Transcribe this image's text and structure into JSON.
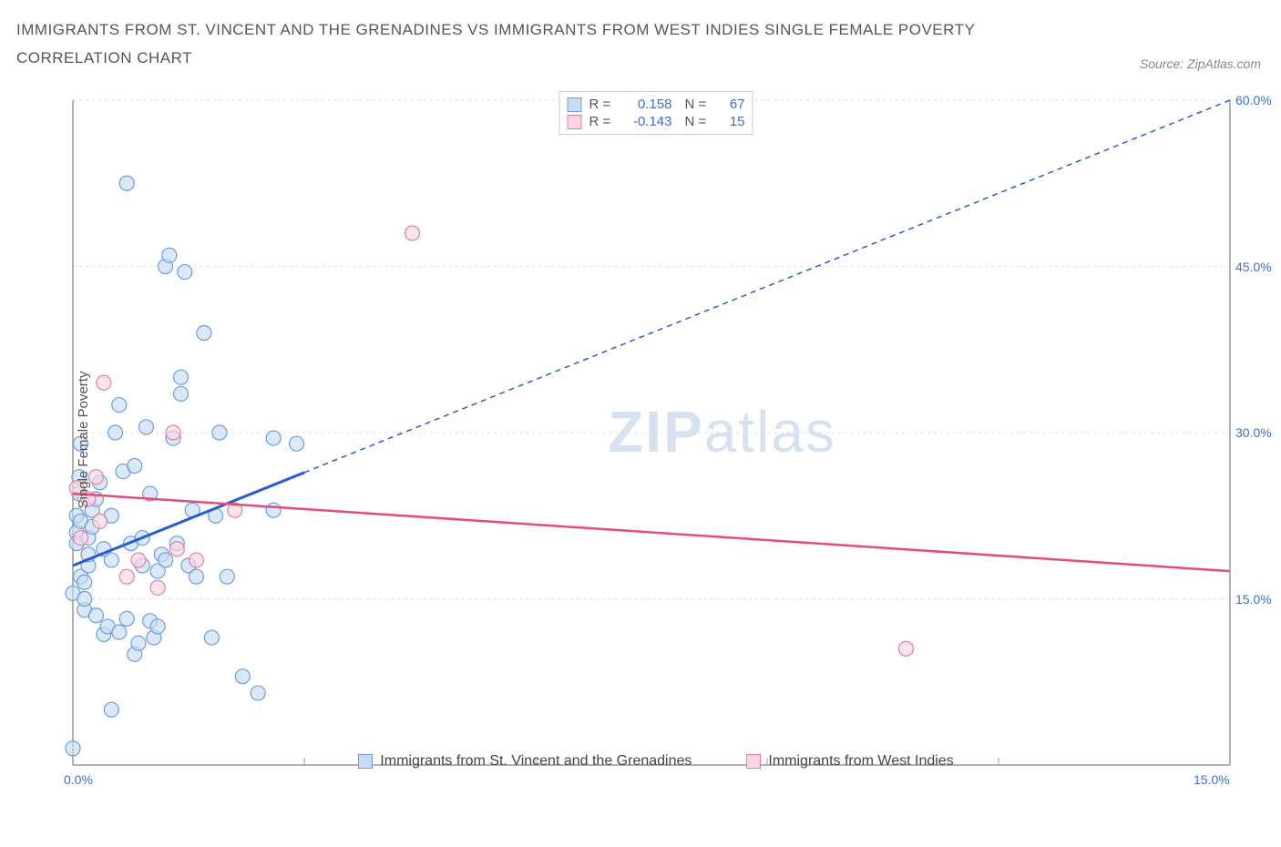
{
  "title": "IMMIGRANTS FROM ST. VINCENT AND THE GRENADINES VS IMMIGRANTS FROM WEST INDIES SINGLE FEMALE POVERTY CORRELATION CHART",
  "source": "Source: ZipAtlas.com",
  "y_axis_label": "Single Female Poverty",
  "watermark_bold": "ZIP",
  "watermark_light": "atlas",
  "chart": {
    "type": "scatter",
    "background_color": "#ffffff",
    "grid_color": "#dddddd",
    "axis_color": "#999999",
    "axis_tick_color": "#3b6fd6",
    "x_range": [
      0.0,
      15.0
    ],
    "y_range": [
      0.0,
      60.0
    ],
    "x_ticks": [
      {
        "val": 0.0,
        "label": "0.0%"
      },
      {
        "val": 15.0,
        "label": "15.0%"
      }
    ],
    "x_minor_ticks": [
      3.0,
      6.0,
      9.0,
      12.0
    ],
    "y_ticks": [
      {
        "val": 15.0,
        "label": "15.0%"
      },
      {
        "val": 30.0,
        "label": "30.0%"
      },
      {
        "val": 45.0,
        "label": "45.0%"
      },
      {
        "val": 60.0,
        "label": "60.0%"
      }
    ],
    "marker_radius": 8,
    "marker_stroke_width": 1.2,
    "series": [
      {
        "id": "svg_series",
        "name": "Immigrants from St. Vincent and the Grenadines",
        "fill": "#c8dcf5",
        "stroke": "#6a9de0",
        "line_color": "#2a5bd0",
        "line_solid_end_x": 3.0,
        "line_dash": "6,5",
        "R": "0.158",
        "N": "67",
        "trend": {
          "x1": 0.0,
          "y1": 18.0,
          "x2": 15.0,
          "y2": 60.0
        },
        "points": [
          [
            0.0,
            1.5
          ],
          [
            0.0,
            15.5
          ],
          [
            0.05,
            21.0
          ],
          [
            0.05,
            20.0
          ],
          [
            0.05,
            22.5
          ],
          [
            0.08,
            26.0
          ],
          [
            0.08,
            24.5
          ],
          [
            0.1,
            22.0
          ],
          [
            0.1,
            29.0
          ],
          [
            0.1,
            17.0
          ],
          [
            0.15,
            14.0
          ],
          [
            0.15,
            15.0
          ],
          [
            0.15,
            16.5
          ],
          [
            0.2,
            18.0
          ],
          [
            0.2,
            19.0
          ],
          [
            0.2,
            20.5
          ],
          [
            0.25,
            21.5
          ],
          [
            0.25,
            23.0
          ],
          [
            0.3,
            13.5
          ],
          [
            0.3,
            24.0
          ],
          [
            0.35,
            25.5
          ],
          [
            0.4,
            19.5
          ],
          [
            0.4,
            11.8
          ],
          [
            0.45,
            12.5
          ],
          [
            0.5,
            18.5
          ],
          [
            0.5,
            22.5
          ],
          [
            0.55,
            30.0
          ],
          [
            0.6,
            12.0
          ],
          [
            0.6,
            32.5
          ],
          [
            0.65,
            26.5
          ],
          [
            0.7,
            52.5
          ],
          [
            0.7,
            13.2
          ],
          [
            0.75,
            20.0
          ],
          [
            0.8,
            10.0
          ],
          [
            0.8,
            27.0
          ],
          [
            0.85,
            11.0
          ],
          [
            0.9,
            18.0
          ],
          [
            0.9,
            20.5
          ],
          [
            0.95,
            30.5
          ],
          [
            1.0,
            13.0
          ],
          [
            1.0,
            24.5
          ],
          [
            1.05,
            11.5
          ],
          [
            1.1,
            12.5
          ],
          [
            1.1,
            17.5
          ],
          [
            1.15,
            19.0
          ],
          [
            1.2,
            45.0
          ],
          [
            1.2,
            18.5
          ],
          [
            1.25,
            46.0
          ],
          [
            1.3,
            29.5
          ],
          [
            1.35,
            20.0
          ],
          [
            1.4,
            33.5
          ],
          [
            1.4,
            35.0
          ],
          [
            1.45,
            44.5
          ],
          [
            1.5,
            18.0
          ],
          [
            1.55,
            23.0
          ],
          [
            1.6,
            17.0
          ],
          [
            1.7,
            39.0
          ],
          [
            1.8,
            11.5
          ],
          [
            1.85,
            22.5
          ],
          [
            1.9,
            30.0
          ],
          [
            2.0,
            17.0
          ],
          [
            2.2,
            8.0
          ],
          [
            2.4,
            6.5
          ],
          [
            2.6,
            29.5
          ],
          [
            2.6,
            23.0
          ],
          [
            2.9,
            29.0
          ],
          [
            0.5,
            5.0
          ]
        ]
      },
      {
        "id": "wi_series",
        "name": "Immigrants from West Indies",
        "fill": "#fbd5e0",
        "stroke": "#e87da0",
        "line_color": "#e84a7a",
        "line_dash": "none",
        "R": "-0.143",
        "N": "15",
        "trend": {
          "x1": 0.0,
          "y1": 24.5,
          "x2": 15.0,
          "y2": 17.5
        },
        "points": [
          [
            0.05,
            25.0
          ],
          [
            0.1,
            20.5
          ],
          [
            0.2,
            24.0
          ],
          [
            0.3,
            26.0
          ],
          [
            0.35,
            22.0
          ],
          [
            0.4,
            34.5
          ],
          [
            0.7,
            17.0
          ],
          [
            0.85,
            18.5
          ],
          [
            1.1,
            16.0
          ],
          [
            1.3,
            30.0
          ],
          [
            1.35,
            19.5
          ],
          [
            1.6,
            18.5
          ],
          [
            2.1,
            23.0
          ],
          [
            4.4,
            48.0
          ],
          [
            10.8,
            10.5
          ]
        ]
      }
    ]
  },
  "r_legend": {
    "labels": {
      "R": "R =",
      "N": "N ="
    }
  },
  "bottom_legend": {
    "items": [
      {
        "series": 0
      },
      {
        "series": 1
      }
    ]
  }
}
